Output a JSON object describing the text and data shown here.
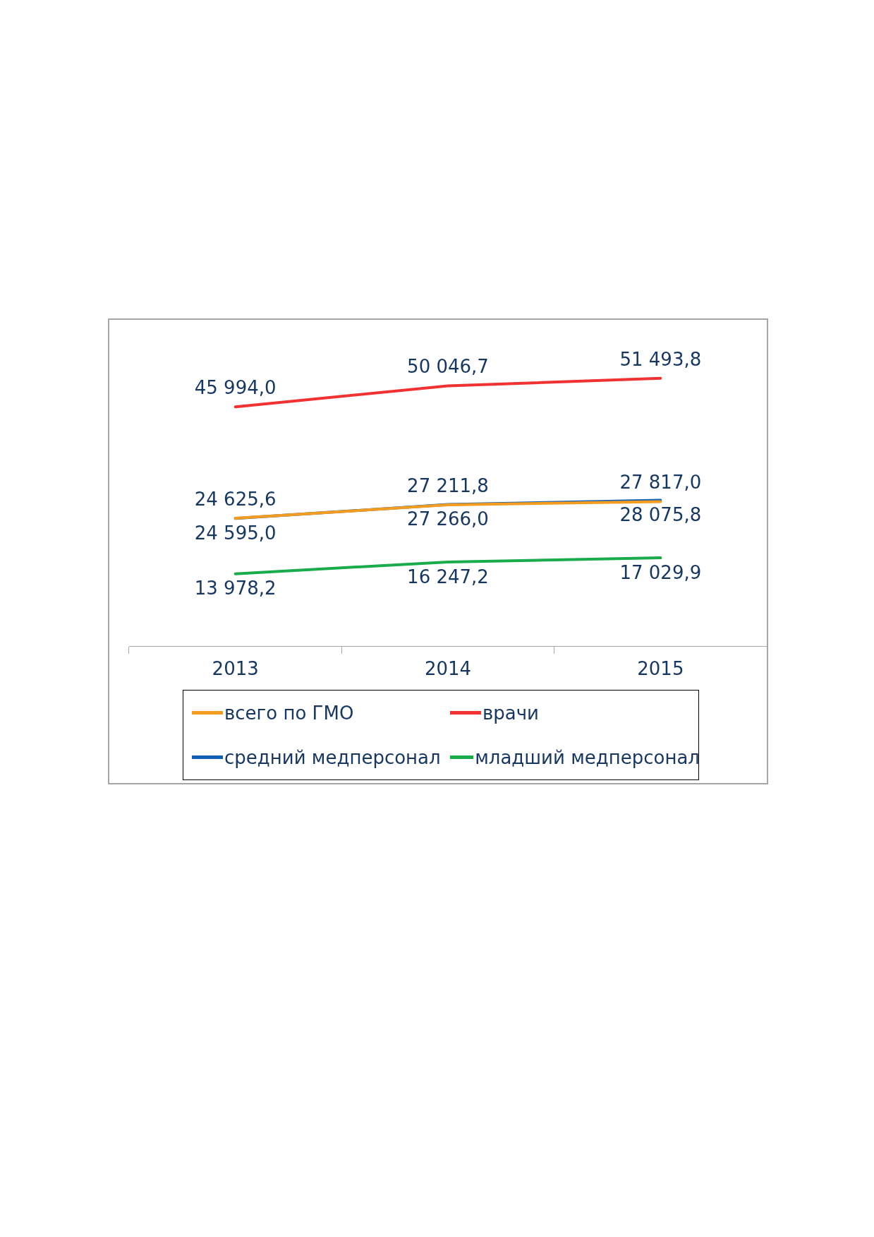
{
  "chart_data": {
    "type": "line",
    "categories": [
      "2013",
      "2014",
      "2015"
    ],
    "legend": "bottom",
    "marker": "none",
    "series": [
      {
        "name": "всего по ГМО",
        "color": "#f39c1f",
        "values": [
          24625.6,
          27211.8,
          27817.0
        ],
        "value_labels": [
          "24 625,6",
          "27 211,8",
          "27 817,0"
        ]
      },
      {
        "name": "врачи",
        "color": "#f03232",
        "values": [
          45994.0,
          50046.7,
          51493.8
        ],
        "value_labels": [
          "45 994,0",
          "50 046,7",
          "51 493,8"
        ]
      },
      {
        "name": "средний медперсонал",
        "color": "#1060b4",
        "values": [
          24595.0,
          27266.0,
          28075.8
        ],
        "value_labels": [
          "24 595,0",
          "27 266,0",
          "28 075,8"
        ]
      },
      {
        "name": "младший медперсонал",
        "color": "#1aab4c",
        "values": [
          13978.2,
          16247.2,
          17029.9
        ],
        "value_labels": [
          "13 978,2",
          "16 247,2",
          "17 029,9"
        ]
      }
    ]
  }
}
